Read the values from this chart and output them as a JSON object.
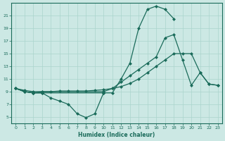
{
  "xlabel": "Humidex (Indice chaleur)",
  "bg_color": "#cce8e4",
  "line_color": "#1a6b5a",
  "grid_color": "#aad4cc",
  "xlim": [
    -0.5,
    23.5
  ],
  "ylim": [
    4,
    23
  ],
  "xticks": [
    0,
    1,
    2,
    3,
    4,
    5,
    6,
    7,
    8,
    9,
    10,
    11,
    12,
    13,
    14,
    15,
    16,
    17,
    18,
    19,
    20,
    21,
    22,
    23
  ],
  "yticks": [
    5,
    7,
    9,
    11,
    13,
    15,
    17,
    19,
    21
  ],
  "curve1_x": [
    0,
    1,
    2,
    3,
    4,
    5,
    6,
    7,
    8,
    9,
    10
  ],
  "curve1_y": [
    9.5,
    9.0,
    8.8,
    8.8,
    8.0,
    7.5,
    7.0,
    5.5,
    4.9,
    5.5,
    8.8
  ],
  "curve2_x": [
    0,
    1,
    2,
    3,
    10,
    11,
    12,
    13,
    14,
    15,
    16,
    17,
    18
  ],
  "curve2_y": [
    9.5,
    9.0,
    8.8,
    8.8,
    8.8,
    8.8,
    11.0,
    13.5,
    19.0,
    22.0,
    22.5,
    22.0,
    20.5
  ],
  "curve3_x": [
    0,
    1,
    2,
    3,
    10,
    11,
    12,
    13,
    14,
    15,
    16,
    17,
    18,
    19,
    20,
    21,
    22,
    23
  ],
  "curve3_y": [
    9.5,
    9.0,
    8.8,
    9.0,
    9.0,
    9.5,
    10.5,
    11.5,
    12.5,
    13.5,
    14.5,
    17.5,
    18.0,
    14.0,
    10.0,
    12.0,
    10.2,
    10.0
  ],
  "curve4_x": [
    0,
    1,
    2,
    3,
    4,
    5,
    6,
    7,
    8,
    9,
    10,
    11,
    12,
    13,
    14,
    15,
    16,
    17,
    18,
    19,
    20,
    21,
    22,
    23
  ],
  "curve4_y": [
    9.5,
    9.2,
    9.0,
    9.0,
    9.0,
    9.1,
    9.1,
    9.1,
    9.1,
    9.2,
    9.3,
    9.5,
    9.8,
    10.3,
    11.0,
    12.0,
    13.0,
    14.0,
    15.0,
    15.0,
    15.0,
    12.0,
    10.2,
    10.0
  ]
}
